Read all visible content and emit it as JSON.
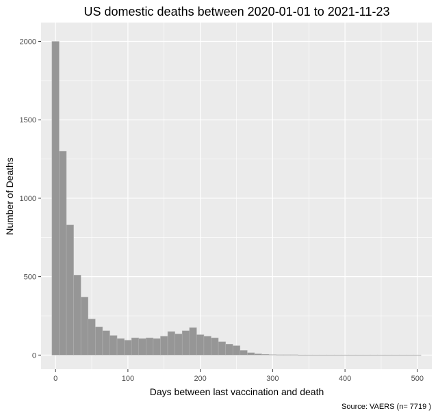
{
  "chart_data": {
    "type": "bar",
    "title": "US domestic deaths between 2020-01-01 to 2021-11-23",
    "xlabel": "Days between last vaccination and death",
    "ylabel": "Number of Deaths",
    "caption": "Source: VAERS (n= 7719 )",
    "xlim": [
      -20,
      520
    ],
    "ylim": [
      -90,
      2120
    ],
    "x_ticks": [
      0,
      100,
      200,
      300,
      400,
      500
    ],
    "y_ticks": [
      0,
      500,
      1000,
      1500,
      2000
    ],
    "bin_width": 10,
    "bin_centers": [
      0,
      10,
      20,
      30,
      40,
      50,
      60,
      70,
      80,
      90,
      100,
      110,
      120,
      130,
      140,
      150,
      160,
      170,
      180,
      190,
      200,
      210,
      220,
      230,
      240,
      250,
      260,
      270,
      280,
      290,
      300,
      310,
      320,
      330,
      340,
      350,
      360,
      370,
      380,
      390,
      400,
      410,
      420,
      430,
      440,
      450,
      460,
      470,
      480,
      490,
      500
    ],
    "values": [
      2000,
      1300,
      830,
      510,
      370,
      230,
      180,
      155,
      125,
      105,
      95,
      110,
      105,
      110,
      105,
      120,
      150,
      135,
      155,
      175,
      130,
      120,
      110,
      85,
      70,
      60,
      30,
      15,
      8,
      5,
      3,
      2,
      2,
      2,
      1,
      1,
      1,
      1,
      1,
      1,
      1,
      1,
      1,
      1,
      1,
      1,
      1,
      1,
      1,
      1,
      1
    ],
    "grid": true,
    "legend": "none",
    "colors": {
      "panel_background": "#ebebeb",
      "gridline": "#ffffff",
      "bar_fill": "#969696",
      "bar_outline": "#b4b4b4"
    }
  }
}
